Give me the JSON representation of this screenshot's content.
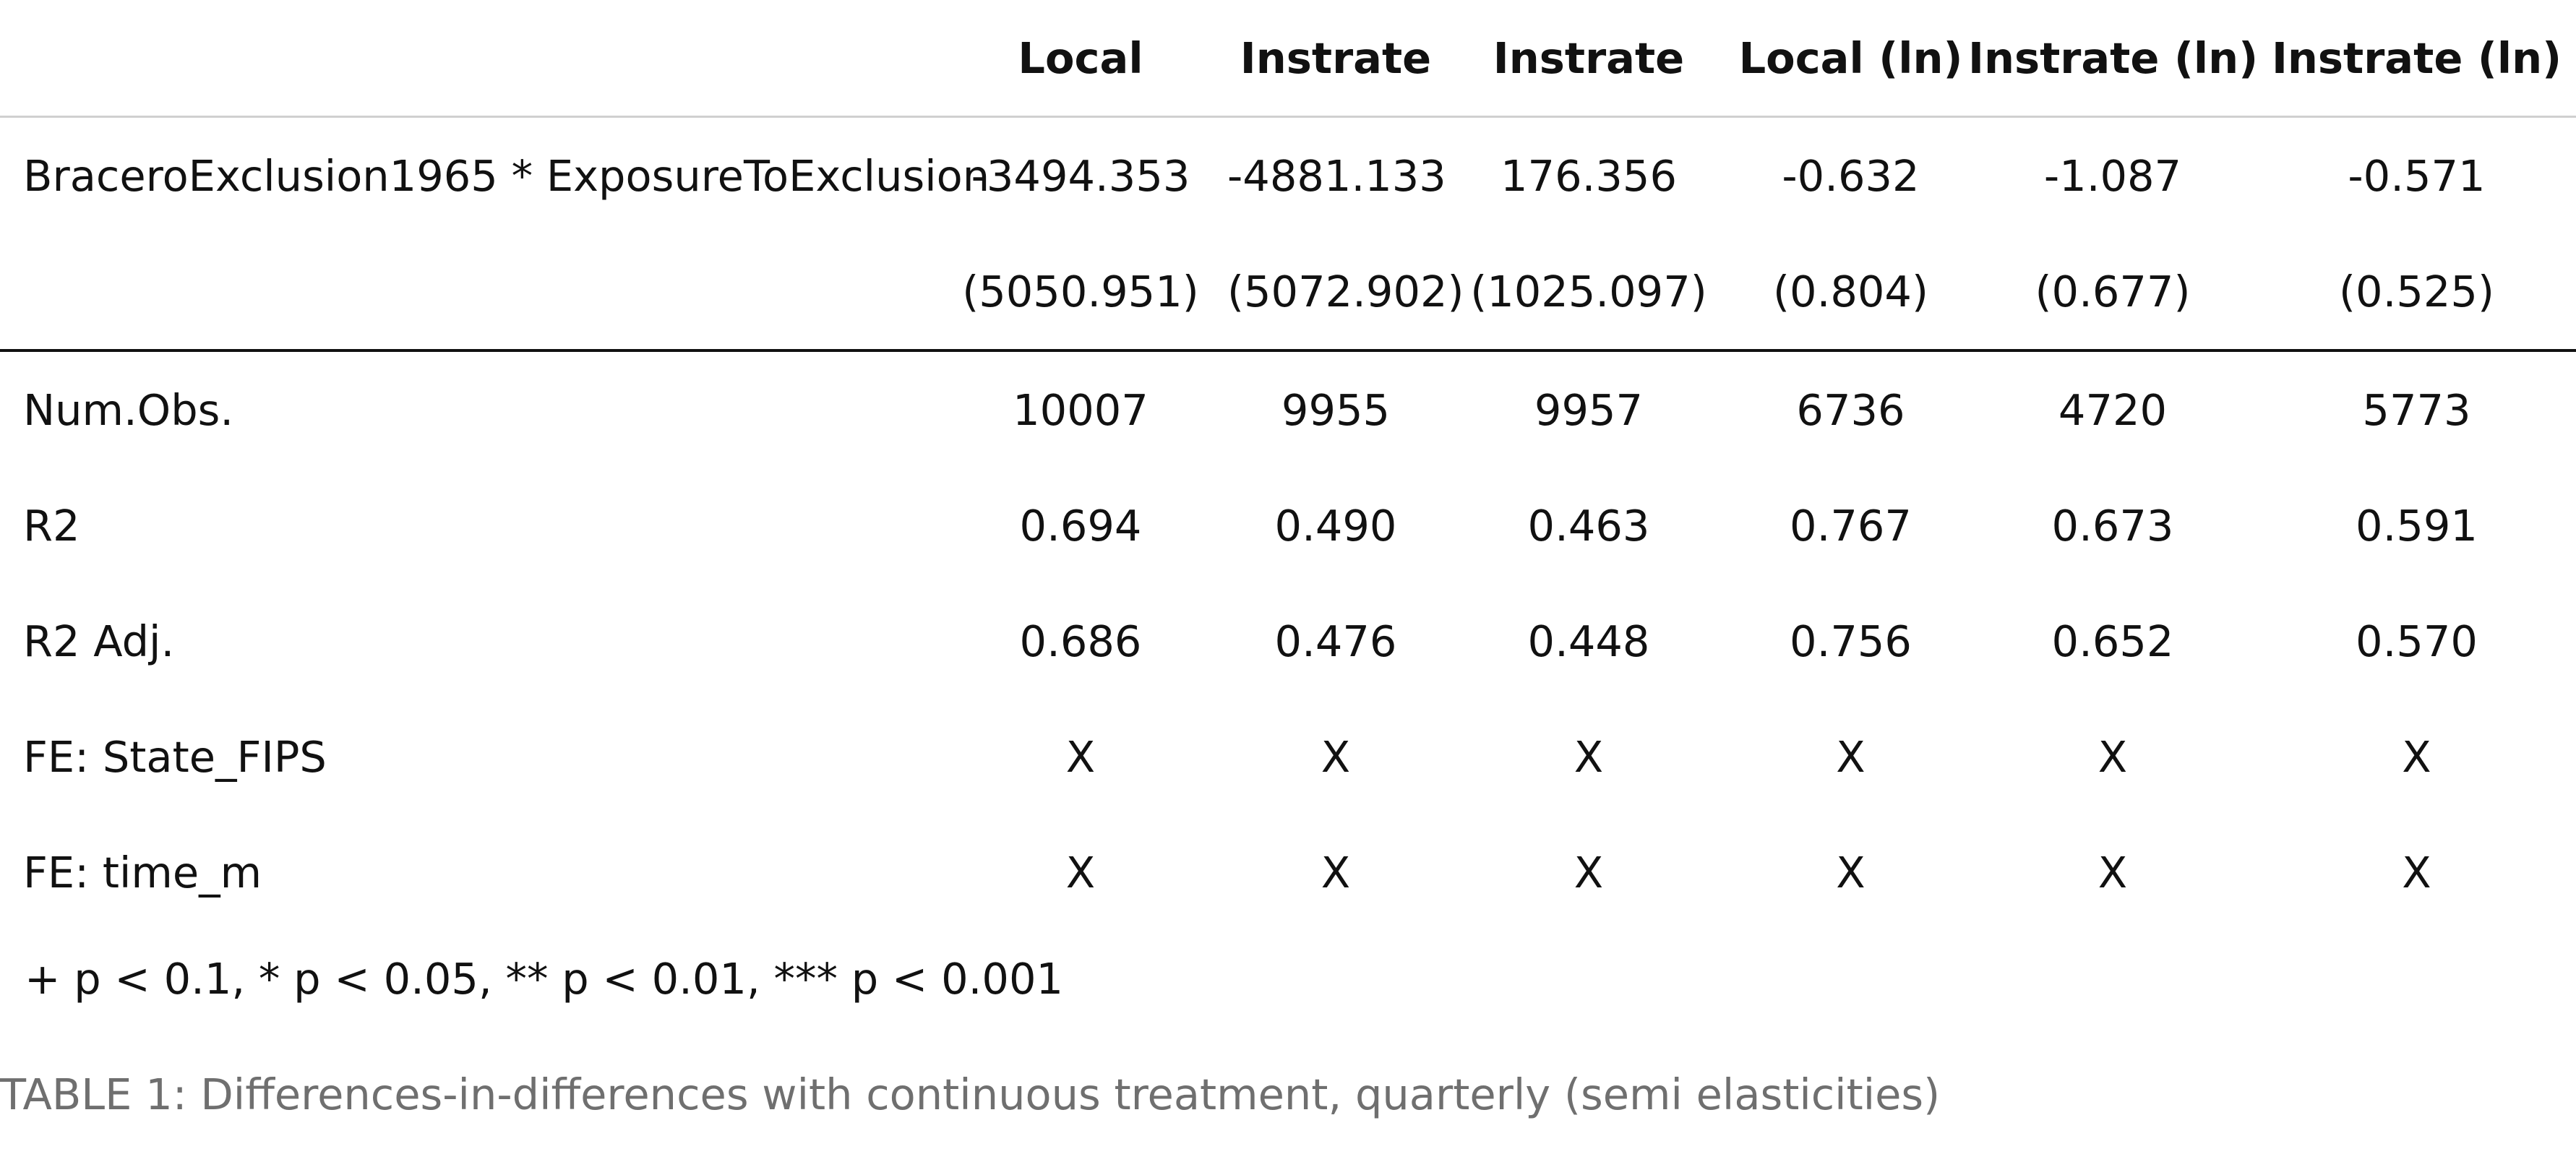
{
  "table": {
    "columns": [
      "",
      "Local",
      "Instrate",
      "Instrate",
      "Local (ln)",
      "Instrate (ln)",
      "Instrate (ln)"
    ],
    "coef": {
      "label": "BraceroExclusion1965 * ExposureToExclusion",
      "values": [
        "-3494.353",
        "-4881.133",
        "176.356",
        "-0.632",
        "-1.087",
        "-0.571"
      ],
      "se": [
        "(5050.951)",
        "(5072.902)",
        "(1025.097)",
        "(0.804)",
        "(0.677)",
        "(0.525)"
      ]
    },
    "stats": [
      {
        "label": "Num.Obs.",
        "values": [
          "10007",
          "9955",
          "9957",
          "6736",
          "4720",
          "5773"
        ]
      },
      {
        "label": "R2",
        "values": [
          "0.694",
          "0.490",
          "0.463",
          "0.767",
          "0.673",
          "0.591"
        ]
      },
      {
        "label": "R2 Adj.",
        "values": [
          "0.686",
          "0.476",
          "0.448",
          "0.756",
          "0.652",
          "0.570"
        ]
      },
      {
        "label": "FE: State_FIPS",
        "values": [
          "X",
          "X",
          "X",
          "X",
          "X",
          "X"
        ]
      },
      {
        "label": "FE: time_m",
        "values": [
          "X",
          "X",
          "X",
          "X",
          "X",
          "X"
        ]
      }
    ],
    "footnote": "+ p < 0.1, * p < 0.05, ** p < 0.01, *** p < 0.001"
  },
  "caption": "TABLE 1: Differences-in-differences with continuous treatment, quarterly (semi elasticities)"
}
